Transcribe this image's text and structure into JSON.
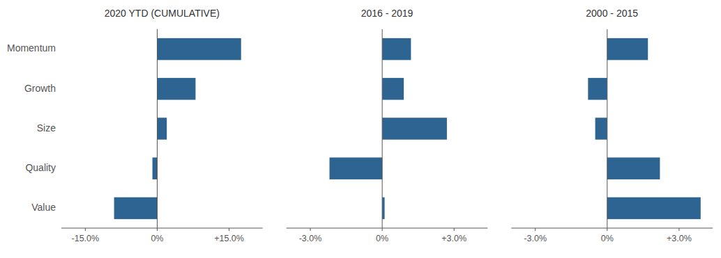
{
  "chart_data": [
    {
      "type": "bar",
      "orientation": "horizontal",
      "title": "2020 YTD (CUMULATIVE)",
      "categories": [
        "Momentum",
        "Growth",
        "Size",
        "Quality",
        "Value"
      ],
      "values": [
        17.5,
        8.0,
        2.0,
        -1.0,
        -9.0
      ],
      "color": "#2e6492",
      "xlim": [
        -20,
        22
      ],
      "xticks": [
        {
          "value": -15.0,
          "label": "-15.0%"
        },
        {
          "value": 0.0,
          "label": "0%"
        },
        {
          "value": 15.0,
          "label": "+15.0%"
        }
      ],
      "grid": false
    },
    {
      "type": "bar",
      "orientation": "horizontal",
      "title": "2016 - 2019",
      "categories": [
        "Momentum",
        "Growth",
        "Size",
        "Quality",
        "Value"
      ],
      "values": [
        1.2,
        0.9,
        2.7,
        -2.2,
        0.1
      ],
      "color": "#2e6492",
      "xlim": [
        -4.0,
        4.4
      ],
      "xticks": [
        {
          "value": -3.0,
          "label": "-3.0%"
        },
        {
          "value": 0.0,
          "label": "0%"
        },
        {
          "value": 3.0,
          "label": "+3.0%"
        }
      ],
      "grid": false,
      "tick_labels": "x"
    },
    {
      "type": "bar",
      "orientation": "horizontal",
      "title": "2000 - 2015",
      "categories": [
        "Momentum",
        "Growth",
        "Size",
        "Quality",
        "Value"
      ],
      "values": [
        1.7,
        -0.8,
        -0.5,
        2.2,
        3.9
      ],
      "color": "#2e6492",
      "xlim": [
        -4.0,
        4.4
      ],
      "xticks": [
        {
          "value": -3.0,
          "label": "-3.0%"
        },
        {
          "value": 0.0,
          "label": "0%"
        },
        {
          "value": 3.0,
          "label": "+3.0%"
        }
      ],
      "grid": false,
      "tick_labels": "x"
    }
  ]
}
